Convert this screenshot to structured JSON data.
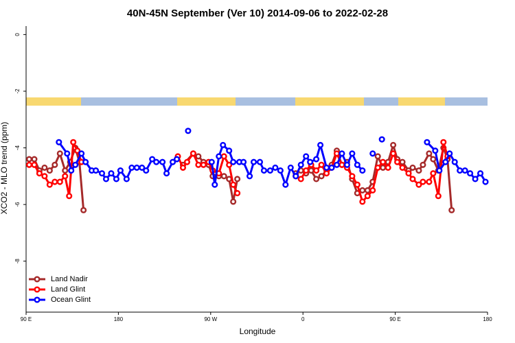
{
  "chart_data": {
    "type": "line",
    "title": "40N-45N September (Ver 10)   2014-09-06 to 2022-02-28",
    "xlabel": "Longitude",
    "ylabel": "XCO2 - MLO trend (ppm)",
    "xlim": [
      90,
      540
    ],
    "ylim": [
      -9.8,
      0.3
    ],
    "xticks": [
      {
        "value": 90,
        "label": "90 E"
      },
      {
        "value": 180,
        "label": "180"
      },
      {
        "value": 270,
        "label": "90 W"
      },
      {
        "value": 360,
        "label": "0"
      },
      {
        "value": 450,
        "label": "90 E"
      },
      {
        "value": 540,
        "label": "180"
      }
    ],
    "yticks": [
      0,
      -2,
      -4,
      -6,
      -8
    ],
    "legend": "bottom-left",
    "series": [
      {
        "name": "Land Nadir",
        "color": "#a52a2a",
        "x": [
          93,
          98,
          103,
          108,
          113,
          118,
          123,
          128,
          133,
          138,
          142,
          146,
          null,
          243,
          253,
          258,
          263,
          268,
          272,
          278,
          283,
          288,
          292,
          296,
          null,
          353,
          358,
          363,
          368,
          373,
          378,
          383,
          388,
          393,
          398,
          403,
          408,
          413,
          418,
          423,
          428,
          433,
          438,
          443,
          448,
          452,
          457,
          463,
          467,
          473,
          477,
          483,
          487,
          492,
          497,
          501,
          505
        ],
        "values": [
          -4.4,
          -4.4,
          -4.8,
          -4.7,
          -4.8,
          -4.6,
          -4.2,
          -4.8,
          -4.5,
          -4.0,
          -4.5,
          -6.2,
          null,
          -4.6,
          -4.2,
          -4.3,
          -4.5,
          -4.6,
          -5.0,
          -5.0,
          -5.0,
          -5.1,
          -5.9,
          -5.1,
          null,
          -4.9,
          -4.8,
          -4.9,
          -4.8,
          -5.1,
          -5.0,
          -4.8,
          -4.6,
          -4.1,
          -4.6,
          -4.5,
          -5.1,
          -5.6,
          -5.5,
          -5.5,
          -5.2,
          -4.3,
          -4.7,
          -4.5,
          -3.9,
          -4.4,
          -4.5,
          -4.8,
          -4.7,
          -4.8,
          -4.6,
          -4.2,
          -4.4,
          -4.8,
          -4.0,
          -4.4,
          -6.2
        ]
      },
      {
        "name": "Land Glint",
        "color": "#ff0000",
        "x": [
          93,
          98,
          103,
          108,
          113,
          118,
          123,
          128,
          132,
          136,
          140,
          144,
          null,
          238,
          243,
          247,
          253,
          258,
          263,
          268,
          272,
          278,
          283,
          288,
          292,
          296,
          null,
          353,
          358,
          363,
          368,
          373,
          378,
          383,
          388,
          393,
          398,
          403,
          408,
          413,
          418,
          423,
          428,
          433,
          438,
          443,
          448,
          452,
          457,
          463,
          467,
          473,
          477,
          483,
          487,
          492,
          497,
          501
        ],
        "values": [
          -4.6,
          -4.6,
          -4.9,
          -5.0,
          -5.3,
          -5.2,
          -5.2,
          -5.0,
          -5.7,
          -3.8,
          -4.1,
          -4.5,
          null,
          -4.3,
          -4.7,
          -4.5,
          -4.2,
          -4.6,
          -4.6,
          -4.5,
          -4.8,
          -4.9,
          -4.3,
          -4.6,
          -5.3,
          -5.6,
          null,
          -5.0,
          -5.1,
          -4.8,
          -4.6,
          -4.8,
          -4.6,
          -4.9,
          -4.7,
          -4.2,
          -4.6,
          -4.7,
          -5.0,
          -5.3,
          -5.9,
          -5.7,
          -5.5,
          -4.7,
          -4.5,
          -4.7,
          -4.2,
          -4.5,
          -4.7,
          -4.9,
          -5.1,
          -5.3,
          -5.2,
          -5.2,
          -4.9,
          -5.7,
          -3.8,
          -4.3
        ]
      },
      {
        "name": "Ocean Glint",
        "color": "#0000ff",
        "x": [
          122,
          130,
          134,
          138,
          144,
          148,
          154,
          158,
          164,
          168,
          173,
          178,
          182,
          188,
          193,
          198,
          203,
          207,
          213,
          217,
          223,
          227,
          233,
          237,
          null,
          248,
          null,
          271,
          274,
          278,
          282,
          288,
          292,
          298,
          302,
          308,
          312,
          318,
          322,
          328,
          333,
          338,
          343,
          348,
          353,
          358,
          363,
          367,
          373,
          377,
          383,
          388,
          393,
          398,
          403,
          408,
          413,
          418,
          null,
          428,
          null,
          437,
          null,
          481,
          489,
          493,
          499,
          503,
          508,
          513,
          518,
          523,
          528,
          533,
          538
        ],
        "values": [
          -3.8,
          -4.2,
          -4.8,
          -4.6,
          -4.2,
          -4.5,
          -4.8,
          -4.8,
          -4.9,
          -5.1,
          -4.9,
          -5.1,
          -4.8,
          -5.1,
          -4.7,
          -4.7,
          -4.7,
          -4.8,
          -4.4,
          -4.5,
          -4.5,
          -4.9,
          -4.5,
          -4.4,
          null,
          -3.4,
          null,
          -4.5,
          -5.3,
          -4.3,
          -3.9,
          -4.1,
          -4.5,
          -4.5,
          -4.5,
          -5.0,
          -4.5,
          -4.5,
          -4.8,
          -4.8,
          -4.7,
          -4.8,
          -5.3,
          -4.7,
          -5.0,
          -4.6,
          -4.3,
          -4.5,
          -4.4,
          -3.9,
          -4.7,
          -4.7,
          -4.6,
          -4.2,
          -4.6,
          -4.2,
          -4.6,
          -4.8,
          null,
          -4.2,
          null,
          -3.7,
          null,
          -3.8,
          -4.1,
          -4.8,
          -4.5,
          -4.2,
          -4.5,
          -4.8,
          -4.8,
          -4.9,
          -5.1,
          -4.9,
          -5.2
        ]
      }
    ]
  }
}
